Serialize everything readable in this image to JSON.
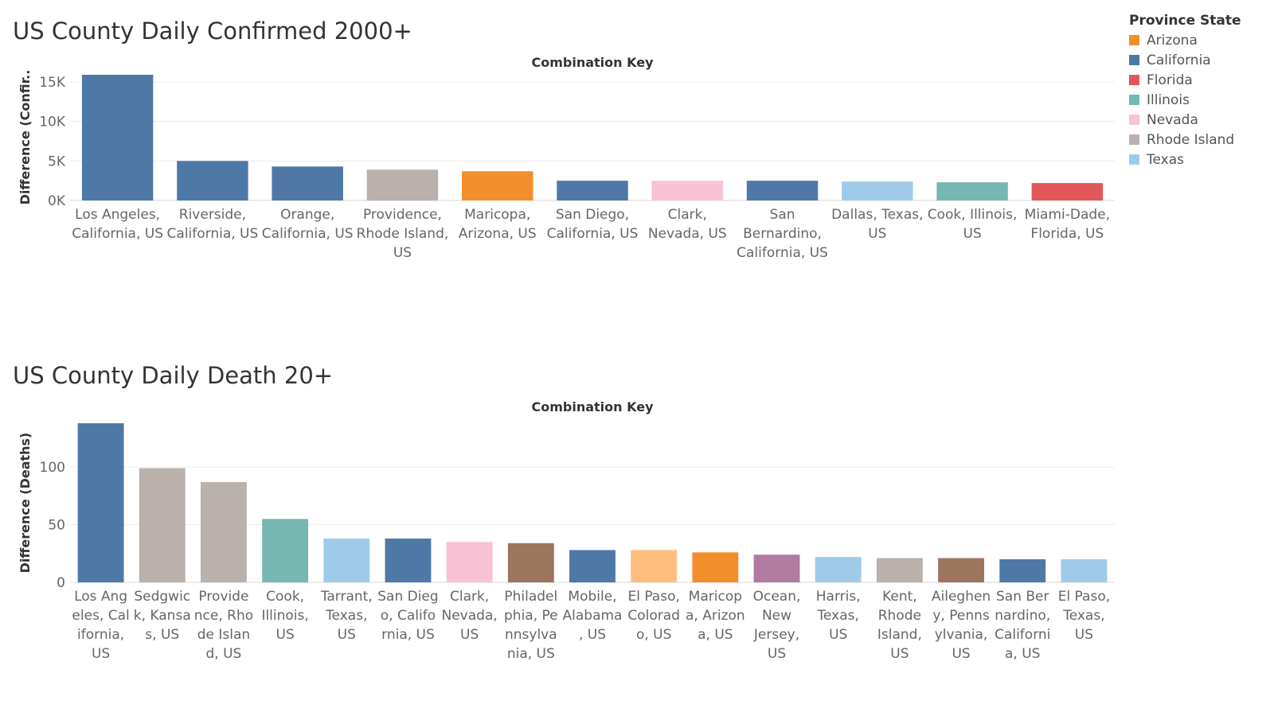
{
  "legend": {
    "title": "Province State",
    "items": [
      {
        "label": "Arizona",
        "color": "#f28e2b"
      },
      {
        "label": "California",
        "color": "#4e79a7"
      },
      {
        "label": "Florida",
        "color": "#e15759"
      },
      {
        "label": "Illinois",
        "color": "#76b7b2"
      },
      {
        "label": "Nevada",
        "color": "#f8c2d4"
      },
      {
        "label": "Rhode Island",
        "color": "#bab0ac"
      },
      {
        "label": "Texas",
        "color": "#a0cbe8"
      }
    ]
  },
  "chart_data": [
    {
      "type": "bar",
      "title": "US County Daily Confirmed 2000+",
      "xlabel": "Combination Key",
      "ylabel": "Difference (Confir..",
      "ylim": [
        0,
        16000
      ],
      "yticks": [
        0,
        5000,
        10000,
        15000
      ],
      "ytick_labels": [
        "0K",
        "5K",
        "10K",
        "15K"
      ],
      "grid": true,
      "categories": [
        [
          "Los Angeles,",
          "California, US"
        ],
        [
          "Riverside,",
          "California, US"
        ],
        [
          "Orange,",
          "California, US"
        ],
        [
          "Providence,",
          "Rhode Island,",
          "US"
        ],
        [
          "Maricopa,",
          "Arizona, US"
        ],
        [
          "San Diego,",
          "California, US"
        ],
        [
          "Clark,",
          "Nevada, US"
        ],
        [
          "San",
          "Bernardino,",
          "California, US"
        ],
        [
          "Dallas, Texas,",
          "US"
        ],
        [
          "Cook, Illinois,",
          "US"
        ],
        [
          "Miami-Dade,",
          "Florida, US"
        ]
      ],
      "values": [
        15900,
        5000,
        4300,
        3900,
        3700,
        2500,
        2500,
        2500,
        2400,
        2300,
        2200
      ],
      "colors": [
        "#4e79a7",
        "#4e79a7",
        "#4e79a7",
        "#bab0ac",
        "#f28e2b",
        "#4e79a7",
        "#f8c2d4",
        "#4e79a7",
        "#a0cbe8",
        "#76b7b2",
        "#e15759"
      ]
    },
    {
      "type": "bar",
      "title": "US County Daily Death 20+",
      "xlabel": "Combination Key",
      "ylabel": "Difference (Deaths)",
      "ylim": [
        0,
        138
      ],
      "yticks": [
        0,
        50,
        100
      ],
      "ytick_labels": [
        "0",
        "50",
        "100"
      ],
      "grid": true,
      "categories": [
        [
          "Los Ang",
          "eles, Cal",
          "ifornia,",
          "US"
        ],
        [
          "Sedgwic",
          "k, Kansa",
          "s, US"
        ],
        [
          "Provide",
          "nce, Rho",
          "de Islan",
          "d, US"
        ],
        [
          "Cook,",
          "Illinois,",
          "US"
        ],
        [
          "Tarrant,",
          "Texas,",
          "US"
        ],
        [
          "San Dieg",
          "o, Califo",
          "rnia, US"
        ],
        [
          "Clark,",
          "Nevada,",
          "US"
        ],
        [
          "Philadel",
          "phia, Pe",
          "nnsylva",
          "nia, US"
        ],
        [
          "Mobile,",
          "Alabama",
          ", US"
        ],
        [
          "El Paso,",
          "Colorad",
          "o, US"
        ],
        [
          "Maricop",
          "a, Arizon",
          "a, US"
        ],
        [
          "Ocean,",
          "New",
          "Jersey,",
          "US"
        ],
        [
          "Harris,",
          "Texas,",
          "US"
        ],
        [
          "Kent,",
          "Rhode",
          "Island,",
          "US"
        ],
        [
          "Aileghen",
          "y, Penns",
          "ylvania,",
          "US"
        ],
        [
          "San Ber",
          "nardino,",
          "Californi",
          "a, US"
        ],
        [
          "El Paso,",
          "Texas,",
          "US"
        ]
      ],
      "values": [
        138,
        99,
        87,
        55,
        38,
        38,
        35,
        34,
        28,
        28,
        26,
        24,
        22,
        21,
        21,
        20,
        20
      ],
      "colors": [
        "#4e79a7",
        "#bab0ac",
        "#bab0ac",
        "#76b7b2",
        "#a0cbe8",
        "#4e79a7",
        "#f8c2d4",
        "#9c755f",
        "#4e79a7",
        "#ffbe7d",
        "#f28e2b",
        "#b07aa1",
        "#a0cbe8",
        "#bab0ac",
        "#9c755f",
        "#4e79a7",
        "#a0cbe8"
      ]
    }
  ]
}
